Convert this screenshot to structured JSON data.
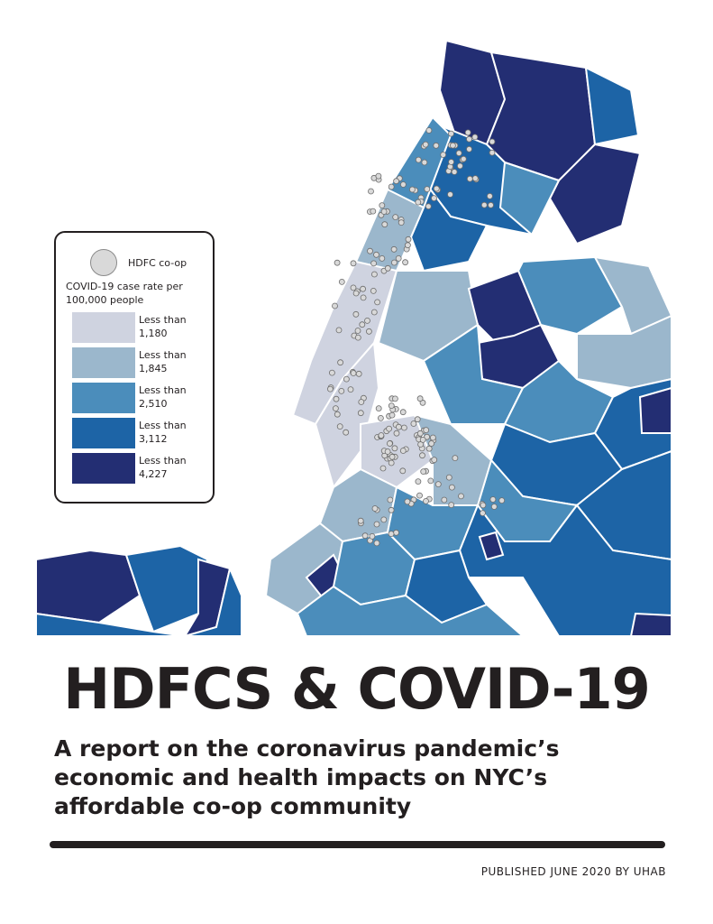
{
  "document": {
    "title": "HDFCS & COVID-19",
    "subtitle": "A report on the coronavirus pandemic’s economic and health impacts on NYC’s affordable co-op community",
    "published": "PUBLISHED JUNE 2020 BY UHAB"
  },
  "legend": {
    "coop_label": "HDFC co-op",
    "rate_title": "COVID-19 case rate per 100,000 people",
    "items": [
      {
        "line1": "Less than",
        "line2": "1,180",
        "color": "#cfd3e0"
      },
      {
        "line1": "Less than",
        "line2": "1,845",
        "color": "#9bb7cc"
      },
      {
        "line1": "Less than",
        "line2": "2,510",
        "color": "#4b8dbb"
      },
      {
        "line1": "Less than",
        "line2": "3,112",
        "color": "#1d64a6"
      },
      {
        "line1": "Less than",
        "line2": "4,227",
        "color": "#232e73"
      }
    ]
  }
}
